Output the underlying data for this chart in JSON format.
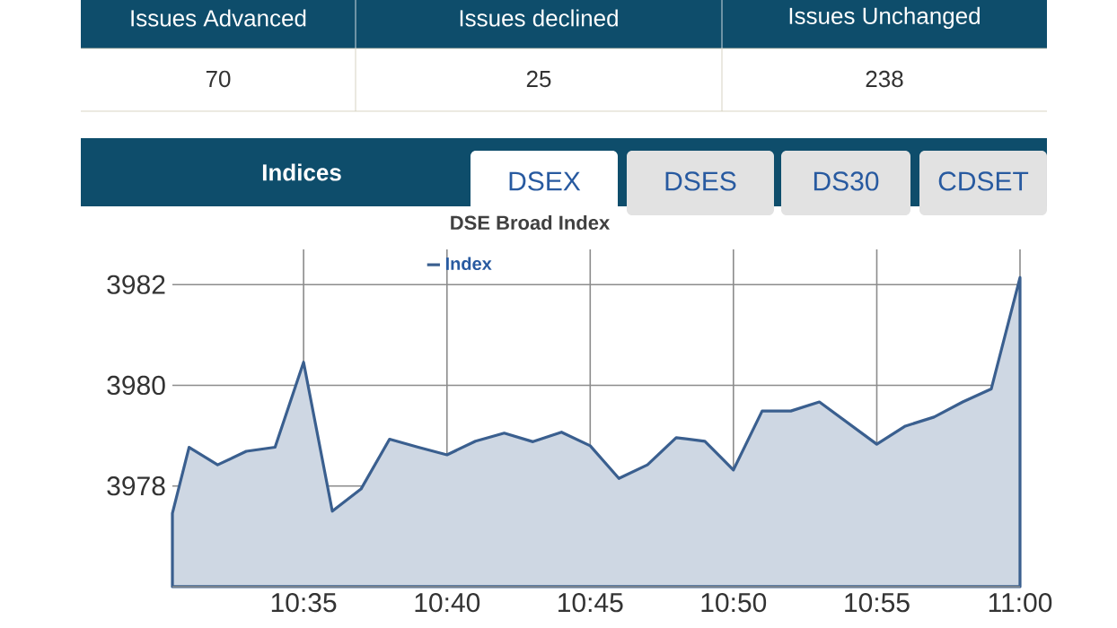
{
  "chart_data": {
    "type": "area",
    "title": "DSE Broad Index",
    "annotations": [
      "Issues Advanced",
      "Issues declined",
      "Issues Unchanged",
      "70",
      "25",
      "238",
      "Indices",
      "DSEX",
      "DSES",
      "DS30",
      "CDSET"
    ],
    "x": [
      10.507,
      10.5167,
      10.5333,
      10.55,
      10.5667,
      10.5833,
      10.6,
      10.6167,
      10.6333,
      10.65,
      10.6667,
      10.6833,
      10.7,
      10.7167,
      10.7333,
      10.75,
      10.7667,
      10.7833,
      10.8,
      10.8167,
      10.8333,
      10.85,
      10.8667,
      10.8833,
      10.9167,
      10.9333,
      10.95,
      10.9667,
      10.9833,
      11
    ],
    "series": [
      {
        "name": "Index",
        "color": "#3a5f8f",
        "values": [
          3977.46,
          3978.77,
          3978.42,
          3978.69,
          3978.77,
          3980.46,
          3977.5,
          3977.94,
          3978.93,
          3978.77,
          3978.62,
          3978.89,
          3979.05,
          3978.88,
          3979.07,
          3978.8,
          3978.15,
          3978.42,
          3978.96,
          3978.89,
          3978.32,
          3979.49,
          3979.49,
          3979.67,
          3978.83,
          3979.19,
          3979.37,
          3979.67,
          3979.93,
          3982.14
        ]
      }
    ],
    "xlim": [
      10.507,
      11
    ],
    "ylim": [
      3976,
      3982.7
    ],
    "xticks": [
      {
        "value": 10.5833,
        "label": "10:35"
      },
      {
        "value": 10.6667,
        "label": "10:40"
      },
      {
        "value": 10.75,
        "label": "10:45"
      },
      {
        "value": 10.8333,
        "label": "10:50"
      },
      {
        "value": 10.9167,
        "label": "10:55"
      },
      {
        "value": 11,
        "label": "11:00"
      }
    ],
    "yticks": [
      3978,
      3980,
      3982
    ],
    "grid": true,
    "legend": "top"
  }
}
